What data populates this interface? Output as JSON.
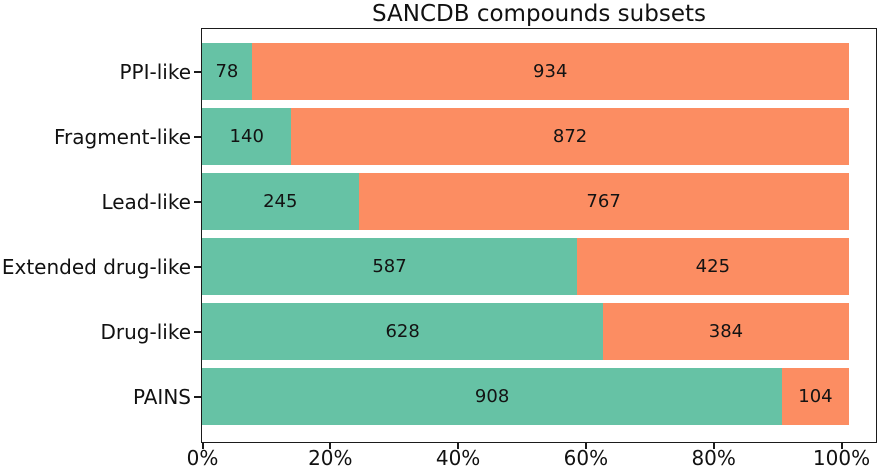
{
  "chart_data": {
    "type": "bar",
    "orientation": "horizontal",
    "stacked": true,
    "title": "SANCDB compounds subsets",
    "categories": [
      "PPI-like",
      "Fragment-like",
      "Lead-like",
      "Extended drug-like",
      "Drug-like",
      "PAINS"
    ],
    "series": [
      {
        "name": "green",
        "color": "#66c2a5",
        "values": [
          78,
          140,
          245,
          587,
          628,
          908
        ]
      },
      {
        "name": "orange",
        "color": "#fc8d62",
        "values": [
          934,
          872,
          767,
          425,
          384,
          104
        ]
      }
    ],
    "bar_value_labels": "centered-in-segment",
    "percent_per_count": 0.1,
    "row_total": 1012,
    "x_ticks": [
      {
        "value": 0,
        "label": "0%"
      },
      {
        "value": 20,
        "label": "20%"
      },
      {
        "value": 40,
        "label": "40%"
      },
      {
        "value": 60,
        "label": "60%"
      },
      {
        "value": 80,
        "label": "80%"
      },
      {
        "value": 100,
        "label": "100%"
      }
    ],
    "xlim_percent": [
      0,
      105.8
    ],
    "ylabel": "",
    "xlabel": "",
    "grid": false,
    "legend": false
  },
  "colors": {
    "green": "#66c2a5",
    "orange": "#fc8d62",
    "spine": "#1b1b1b",
    "text": "#111111",
    "background": "#ffffff"
  }
}
